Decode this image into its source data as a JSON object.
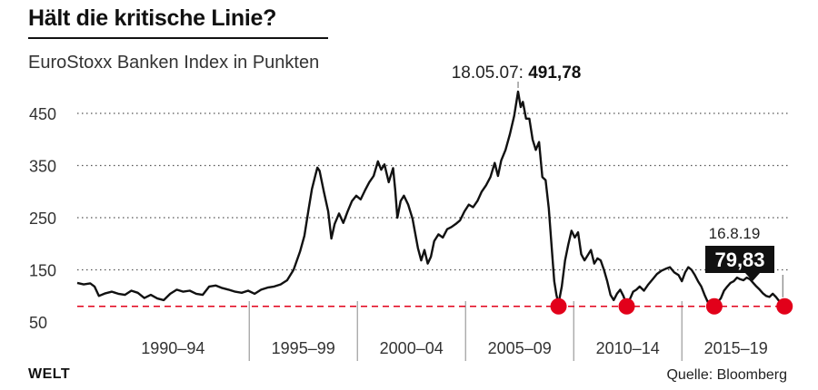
{
  "header": {
    "title": "Hält die kritische Linie?",
    "subtitle": "EuroStoxx Banken Index in Punkten"
  },
  "footer": {
    "brand": "WELT",
    "source": "Quelle: Bloomberg"
  },
  "colors": {
    "line": "#111111",
    "support": "#e2001a",
    "grid": "#555555"
  },
  "chart_data": {
    "type": "line",
    "title": "Hält die kritische Linie?",
    "subtitle": "EuroStoxx Banken Index in Punkten",
    "xlabel": "",
    "ylabel": "",
    "xlim": [
      1987,
      2019.9
    ],
    "ylim": [
      50,
      495
    ],
    "y_ticks": [
      50,
      150,
      250,
      350,
      450
    ],
    "x_categories": [
      "1990–94",
      "1995–99",
      "2000–04",
      "2005–09",
      "2010–14",
      "2015–19"
    ],
    "grid": "horizontal dotted",
    "support_level": 80,
    "series": [
      {
        "points": [
          [
            1987.0,
            125
          ],
          [
            1987.3,
            122
          ],
          [
            1987.6,
            124
          ],
          [
            1987.8,
            118
          ],
          [
            1988.0,
            100
          ],
          [
            1988.3,
            105
          ],
          [
            1988.6,
            108
          ],
          [
            1988.9,
            104
          ],
          [
            1989.2,
            102
          ],
          [
            1989.5,
            110
          ],
          [
            1989.8,
            106
          ],
          [
            1990.1,
            96
          ],
          [
            1990.4,
            102
          ],
          [
            1990.7,
            95
          ],
          [
            1991.0,
            92
          ],
          [
            1991.3,
            104
          ],
          [
            1991.6,
            112
          ],
          [
            1991.9,
            108
          ],
          [
            1992.2,
            110
          ],
          [
            1992.5,
            104
          ],
          [
            1992.8,
            102
          ],
          [
            1993.1,
            118
          ],
          [
            1993.4,
            120
          ],
          [
            1993.7,
            115
          ],
          [
            1994.0,
            112
          ],
          [
            1994.3,
            108
          ],
          [
            1994.6,
            106
          ],
          [
            1994.9,
            110
          ],
          [
            1995.2,
            104
          ],
          [
            1995.5,
            112
          ],
          [
            1995.8,
            116
          ],
          [
            1996.1,
            118
          ],
          [
            1996.4,
            122
          ],
          [
            1996.7,
            130
          ],
          [
            1997.0,
            150
          ],
          [
            1997.3,
            185
          ],
          [
            1997.5,
            215
          ],
          [
            1997.7,
            268
          ],
          [
            1997.85,
            305
          ],
          [
            1998.0,
            330
          ],
          [
            1998.1,
            346
          ],
          [
            1998.2,
            340
          ],
          [
            1998.4,
            300
          ],
          [
            1998.6,
            262
          ],
          [
            1998.75,
            210
          ],
          [
            1998.9,
            238
          ],
          [
            1999.1,
            258
          ],
          [
            1999.3,
            240
          ],
          [
            1999.5,
            262
          ],
          [
            1999.7,
            282
          ],
          [
            1999.9,
            292
          ],
          [
            2000.1,
            285
          ],
          [
            2000.3,
            302
          ],
          [
            2000.5,
            318
          ],
          [
            2000.7,
            330
          ],
          [
            2000.9,
            358
          ],
          [
            2001.05,
            342
          ],
          [
            2001.2,
            352
          ],
          [
            2001.4,
            318
          ],
          [
            2001.6,
            345
          ],
          [
            2001.7,
            302
          ],
          [
            2001.8,
            250
          ],
          [
            2001.95,
            282
          ],
          [
            2002.1,
            292
          ],
          [
            2002.3,
            275
          ],
          [
            2002.5,
            248
          ],
          [
            2002.6,
            225
          ],
          [
            2002.75,
            192
          ],
          [
            2002.9,
            168
          ],
          [
            2003.05,
            188
          ],
          [
            2003.2,
            162
          ],
          [
            2003.35,
            175
          ],
          [
            2003.5,
            205
          ],
          [
            2003.7,
            218
          ],
          [
            2003.9,
            212
          ],
          [
            2004.1,
            228
          ],
          [
            2004.3,
            232
          ],
          [
            2004.5,
            238
          ],
          [
            2004.7,
            245
          ],
          [
            2004.9,
            262
          ],
          [
            2005.1,
            275
          ],
          [
            2005.3,
            270
          ],
          [
            2005.5,
            282
          ],
          [
            2005.7,
            300
          ],
          [
            2005.9,
            312
          ],
          [
            2006.1,
            328
          ],
          [
            2006.3,
            355
          ],
          [
            2006.45,
            330
          ],
          [
            2006.6,
            360
          ],
          [
            2006.8,
            380
          ],
          [
            2007.0,
            410
          ],
          [
            2007.2,
            445
          ],
          [
            2007.38,
            491.78
          ],
          [
            2007.5,
            462
          ],
          [
            2007.6,
            472
          ],
          [
            2007.75,
            440
          ],
          [
            2007.9,
            440
          ],
          [
            2008.05,
            400
          ],
          [
            2008.2,
            380
          ],
          [
            2008.35,
            395
          ],
          [
            2008.5,
            328
          ],
          [
            2008.65,
            322
          ],
          [
            2008.8,
            268
          ],
          [
            2008.92,
            200
          ],
          [
            2009.05,
            128
          ],
          [
            2009.15,
            102
          ],
          [
            2009.25,
            85
          ],
          [
            2009.4,
            118
          ],
          [
            2009.55,
            168
          ],
          [
            2009.7,
            198
          ],
          [
            2009.85,
            225
          ],
          [
            2010.0,
            212
          ],
          [
            2010.15,
            222
          ],
          [
            2010.3,
            180
          ],
          [
            2010.45,
            168
          ],
          [
            2010.6,
            178
          ],
          [
            2010.75,
            188
          ],
          [
            2010.9,
            162
          ],
          [
            2011.05,
            172
          ],
          [
            2011.2,
            168
          ],
          [
            2011.35,
            150
          ],
          [
            2011.5,
            128
          ],
          [
            2011.65,
            102
          ],
          [
            2011.8,
            92
          ],
          [
            2011.95,
            104
          ],
          [
            2012.1,
            112
          ],
          [
            2012.25,
            100
          ],
          [
            2012.4,
            82
          ],
          [
            2012.55,
            94
          ],
          [
            2012.7,
            108
          ],
          [
            2012.85,
            112
          ],
          [
            2013.0,
            118
          ],
          [
            2013.2,
            110
          ],
          [
            2013.4,
            122
          ],
          [
            2013.6,
            132
          ],
          [
            2013.8,
            142
          ],
          [
            2014.0,
            148
          ],
          [
            2014.2,
            152
          ],
          [
            2014.4,
            155
          ],
          [
            2014.6,
            145
          ],
          [
            2014.8,
            140
          ],
          [
            2014.95,
            128
          ],
          [
            2015.1,
            145
          ],
          [
            2015.25,
            155
          ],
          [
            2015.4,
            150
          ],
          [
            2015.55,
            140
          ],
          [
            2015.7,
            128
          ],
          [
            2015.85,
            118
          ],
          [
            2016.0,
            102
          ],
          [
            2016.15,
            88
          ],
          [
            2016.3,
            92
          ],
          [
            2016.45,
            82
          ],
          [
            2016.6,
            88
          ],
          [
            2016.75,
            95
          ],
          [
            2016.9,
            110
          ],
          [
            2017.05,
            118
          ],
          [
            2017.2,
            125
          ],
          [
            2017.35,
            128
          ],
          [
            2017.5,
            135
          ],
          [
            2017.65,
            132
          ],
          [
            2017.8,
            130
          ],
          [
            2017.95,
            135
          ],
          [
            2018.1,
            132
          ],
          [
            2018.25,
            125
          ],
          [
            2018.4,
            118
          ],
          [
            2018.55,
            112
          ],
          [
            2018.7,
            105
          ],
          [
            2018.85,
            100
          ],
          [
            2019.0,
            98
          ],
          [
            2019.15,
            104
          ],
          [
            2019.3,
            98
          ],
          [
            2019.45,
            90
          ],
          [
            2019.6,
            85
          ],
          [
            2019.7,
            79.83
          ]
        ]
      }
    ],
    "annotations": [
      {
        "date": "18.05.07",
        "value_label": "491,78",
        "x": 2007.38,
        "y": 491.78
      },
      {
        "date": "16.8.19",
        "value_label": "79,83",
        "x": 2019.7,
        "y": 79.83
      }
    ],
    "support_markers": [
      {
        "x": 2009.25,
        "y": 80
      },
      {
        "x": 2012.4,
        "y": 80
      },
      {
        "x": 2016.45,
        "y": 80
      },
      {
        "x": 2019.7,
        "y": 80
      }
    ]
  }
}
